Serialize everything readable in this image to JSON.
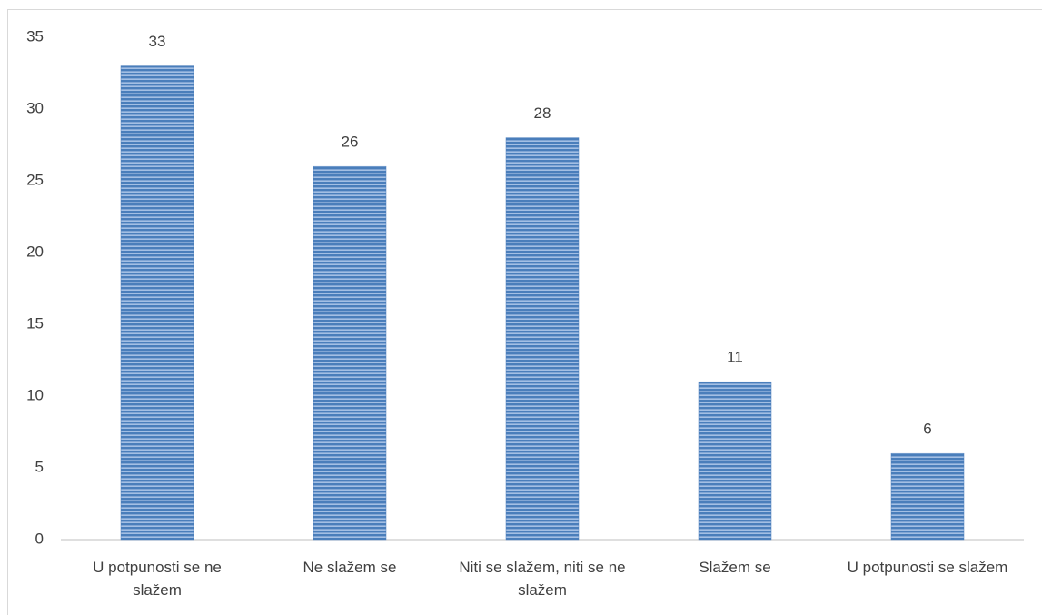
{
  "chart_data": {
    "type": "bar",
    "categories": [
      "U potpunosti se ne slažem",
      "Ne slažem se",
      "Niti se slažem, niti se ne slažem",
      "Slažem se",
      "U potpunosti se slažem"
    ],
    "values": [
      33,
      26,
      28,
      11,
      6
    ],
    "color": "#4a7ebb",
    "ylim": [
      0,
      35
    ],
    "yticks": [
      0,
      5,
      10,
      15,
      20,
      25,
      30,
      35
    ],
    "grid": false
  }
}
